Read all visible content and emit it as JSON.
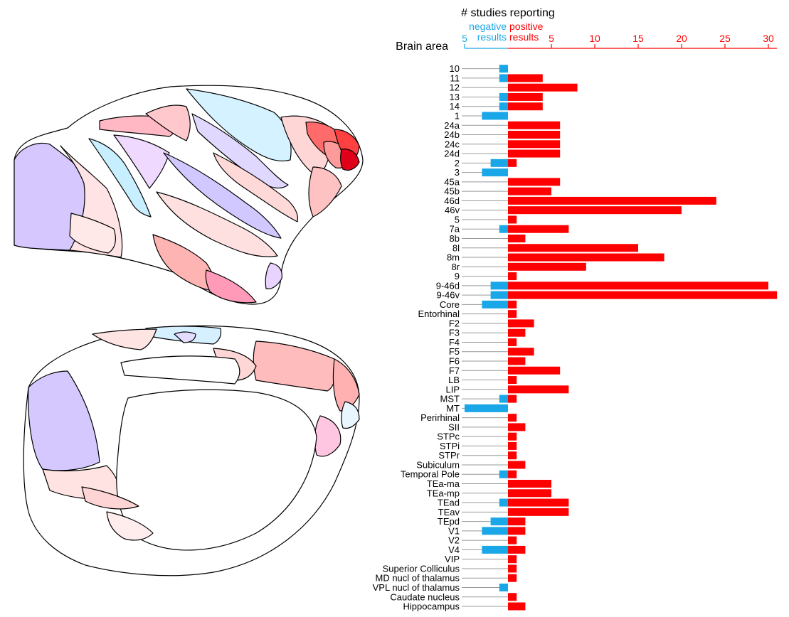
{
  "chart_data": {
    "type": "bar",
    "title": "# studies reporting",
    "category_axis_label": "Brain area",
    "negative_label": [
      "negative",
      "results"
    ],
    "positive_label": [
      "positive",
      "results"
    ],
    "negative_ticks": [
      5
    ],
    "positive_ticks": [
      5,
      10,
      15,
      20,
      25,
      30
    ],
    "negative_range": [
      0,
      5
    ],
    "positive_range": [
      0,
      31
    ],
    "colors": {
      "negative": "#1aa7e8",
      "positive": "#ff0000",
      "guide": "#999999"
    },
    "categories": [
      "10",
      "11",
      "12",
      "13",
      "14",
      "1",
      "24a",
      "24b",
      "24c",
      "24d",
      "2",
      "3",
      "45a",
      "45b",
      "46d",
      "46v",
      "5",
      "7a",
      "8b",
      "8l",
      "8m",
      "8r",
      "9",
      "9-46d",
      "9-46v",
      "Core",
      "Entorhinal",
      "F2",
      "F3",
      "F4",
      "F5",
      "F6",
      "F7",
      "LB",
      "LIP",
      "MST",
      "MT",
      "Perirhinal",
      "SII",
      "STPc",
      "STPi",
      "STPr",
      "Subiculum",
      "Temporal Pole",
      "TEa-ma",
      "TEa-mp",
      "TEad",
      "TEav",
      "TEpd",
      "V1",
      "V2",
      "V4",
      "VIP",
      "Superior Colliculus",
      "MD nucl of thalamus",
      "VPL nucl of thalamus",
      "Caudate nucleus",
      "Hippocampus"
    ],
    "series": [
      {
        "name": "negative results",
        "values": [
          1,
          1,
          0,
          1,
          1,
          3,
          0,
          0,
          0,
          0,
          2,
          3,
          0,
          0,
          0,
          0,
          0,
          1,
          0,
          0,
          0,
          0,
          0,
          2,
          2,
          3,
          0,
          0,
          0,
          0,
          0,
          0,
          0,
          0,
          0,
          1,
          5,
          0,
          0,
          0,
          0,
          0,
          0,
          1,
          0,
          0,
          1,
          0,
          2,
          3,
          0,
          3,
          0,
          0,
          0,
          1,
          0,
          0
        ]
      },
      {
        "name": "positive results",
        "values": [
          0,
          4,
          8,
          4,
          4,
          0,
          6,
          6,
          6,
          6,
          1,
          0,
          6,
          5,
          24,
          20,
          1,
          7,
          2,
          15,
          18,
          9,
          1,
          30,
          31,
          1,
          1,
          3,
          2,
          1,
          3,
          2,
          6,
          1,
          7,
          1,
          0,
          1,
          2,
          1,
          1,
          1,
          2,
          1,
          5,
          5,
          7,
          7,
          2,
          2,
          1,
          2,
          1,
          1,
          1,
          0,
          1,
          2
        ]
      }
    ]
  }
}
